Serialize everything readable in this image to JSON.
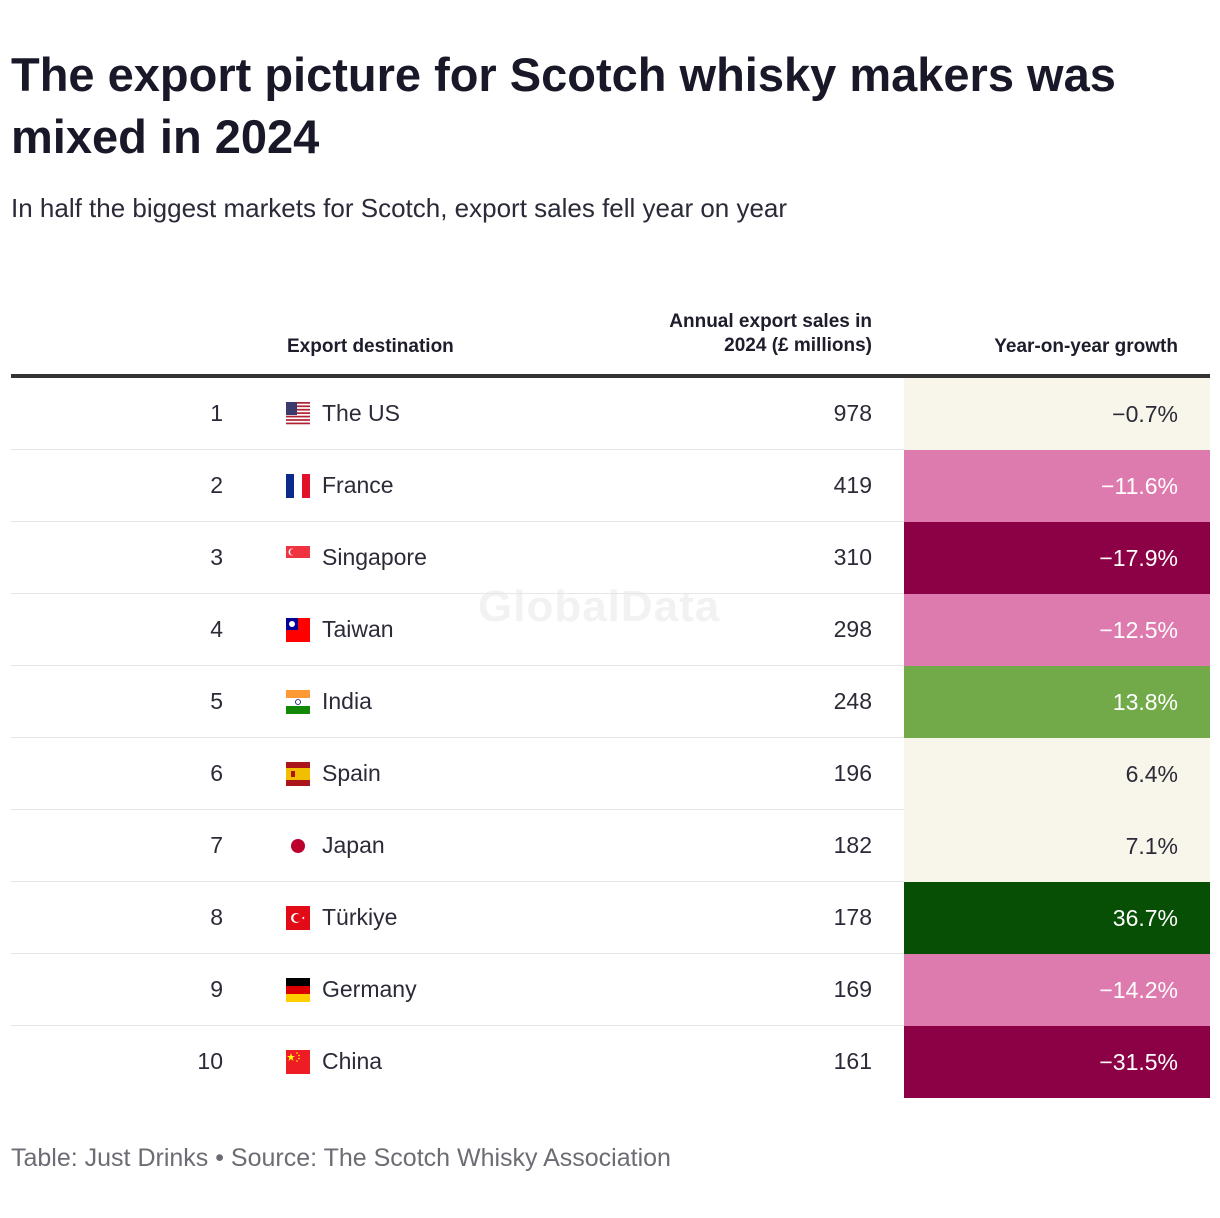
{
  "title": "The export picture for Scotch whisky makers was mixed in 2024",
  "subtitle": "In half the biggest markets for Scotch, export sales fell year on year",
  "watermark": "GlobalData",
  "footer": "Table: Just Drinks • Source: The Scotch Whisky Association",
  "chart_data": {
    "type": "table",
    "title": "The export picture for Scotch whisky makers was mixed in 2024",
    "subtitle": "In half the biggest markets for Scotch, export sales fell year on year",
    "columns": {
      "rank": "",
      "destination": "Export destination",
      "sales": "Annual export sales in 2024 (£ millions)",
      "growth": "Year-on-year growth"
    },
    "rows": [
      {
        "rank": "1",
        "country": "The US",
        "flag": "us-flag-icon",
        "sales": "978",
        "growth": "−0.7%",
        "growth_value": -0.7,
        "bg": "#f8f5ea",
        "fg": "#2b2b38"
      },
      {
        "rank": "2",
        "country": "France",
        "flag": "france-flag-icon",
        "sales": "419",
        "growth": "−11.6%",
        "growth_value": -11.6,
        "bg": "#dd7bae",
        "fg": "#ffffff"
      },
      {
        "rank": "3",
        "country": "Singapore",
        "flag": "singapore-flag-icon",
        "sales": "310",
        "growth": "−17.9%",
        "growth_value": -17.9,
        "bg": "#8c0046",
        "fg": "#ffffff"
      },
      {
        "rank": "4",
        "country": "Taiwan",
        "flag": "taiwan-flag-icon",
        "sales": "298",
        "growth": "−12.5%",
        "growth_value": -12.5,
        "bg": "#dd7bae",
        "fg": "#ffffff"
      },
      {
        "rank": "5",
        "country": "India",
        "flag": "india-flag-icon",
        "sales": "248",
        "growth": "13.8%",
        "growth_value": 13.8,
        "bg": "#72aa49",
        "fg": "#ffffff"
      },
      {
        "rank": "6",
        "country": "Spain",
        "flag": "spain-flag-icon",
        "sales": "196",
        "growth": "6.4%",
        "growth_value": 6.4,
        "bg": "#f8f5ea",
        "fg": "#2b2b38"
      },
      {
        "rank": "7",
        "country": "Japan",
        "flag": "japan-flag-icon",
        "sales": "182",
        "growth": "7.1%",
        "growth_value": 7.1,
        "bg": "#f8f5ea",
        "fg": "#2b2b38"
      },
      {
        "rank": "8",
        "country": "Türkiye",
        "flag": "turkiye-flag-icon",
        "sales": "178",
        "growth": "36.7%",
        "growth_value": 36.7,
        "bg": "#064f05",
        "fg": "#ffffff"
      },
      {
        "rank": "9",
        "country": "Germany",
        "flag": "germany-flag-icon",
        "sales": "169",
        "growth": "−14.2%",
        "growth_value": -14.2,
        "bg": "#dd7bae",
        "fg": "#ffffff"
      },
      {
        "rank": "10",
        "country": "China",
        "flag": "china-flag-icon",
        "sales": "161",
        "growth": "−31.5%",
        "growth_value": -31.5,
        "bg": "#8c0046",
        "fg": "#ffffff"
      }
    ]
  }
}
